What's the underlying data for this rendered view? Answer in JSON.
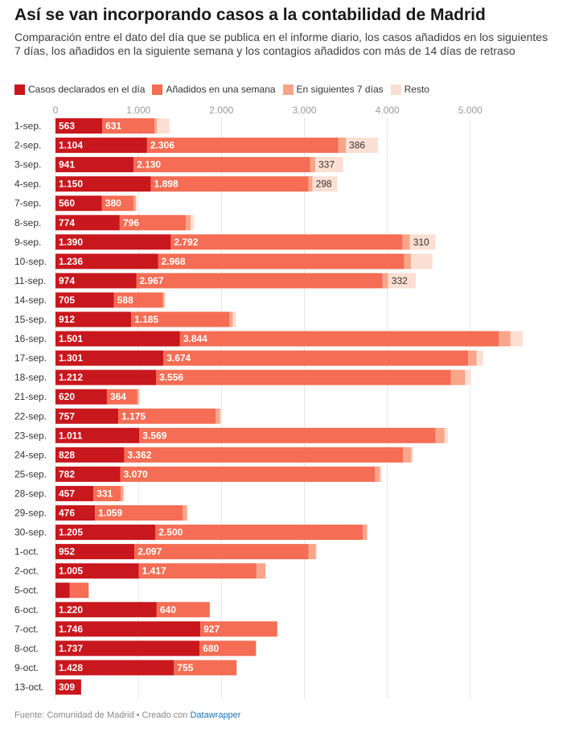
{
  "title": "Así se van incorporando casos a la contabilidad de Madrid",
  "subtitle": "Comparación entre el dato del día que se publica en el informe diario, los casos añadidos en los siguientes 7 días, los añadidos en la siguiente semana y los contagios añadidos con más de 14 días de retraso",
  "legend": [
    {
      "label": "Casos declarados en el día",
      "color": "#c9171e"
    },
    {
      "label": "Añadidos en una semana",
      "color": "#f46d54"
    },
    {
      "label": "En siguientes 7 días",
      "color": "#f9a58a"
    },
    {
      "label": "Resto",
      "color": "#fcdfd3"
    }
  ],
  "footer": {
    "text": "Fuente: Comunidad de Madrid • Creado con ",
    "link": "Datawrapper"
  },
  "chart_data": {
    "type": "bar",
    "orientation": "horizontal",
    "stacked": true,
    "xlim": [
      0,
      5700
    ],
    "x_ticks": [
      0,
      1000,
      2000,
      3000,
      4000,
      5000
    ],
    "x_tick_labels": [
      "0",
      "1.000",
      "2.000",
      "3.000",
      "4.000",
      "5.000"
    ],
    "grid": true,
    "legend_position": "top",
    "categories": [
      "1-sep.",
      "2-sep.",
      "3-sep.",
      "4-sep.",
      "7-sep.",
      "8-sep.",
      "9-sep.",
      "10-sep.",
      "11-sep.",
      "14-sep.",
      "15-sep.",
      "16-sep.",
      "17-sep.",
      "18-sep.",
      "21-sep.",
      "22-sep.",
      "23-sep.",
      "24-sep.",
      "25-sep.",
      "28-sep.",
      "29-sep.",
      "30-sep.",
      "1-oct.",
      "2-oct.",
      "5-oct.",
      "6-oct.",
      "7-oct.",
      "8-oct.",
      "9-oct.",
      "13-oct."
    ],
    "series": [
      {
        "name": "Casos declarados en el día",
        "color": "#c9171e",
        "values": [
          563,
          1104,
          941,
          1150,
          560,
          774,
          1390,
          1236,
          974,
          705,
          912,
          1501,
          1301,
          1212,
          620,
          757,
          1011,
          828,
          782,
          457,
          476,
          1205,
          952,
          1005,
          170,
          1220,
          1746,
          1737,
          1428,
          309
        ],
        "labels": [
          "563",
          "1.104",
          "941",
          "1.150",
          "560",
          "774",
          "1.390",
          "1.236",
          "974",
          "705",
          "912",
          "1.501",
          "1.301",
          "1.212",
          "620",
          "757",
          "1.011",
          "828",
          "782",
          "457",
          "476",
          "1.205",
          "952",
          "1.005",
          "",
          "1.220",
          "1.746",
          "1.737",
          "1.428",
          "309"
        ]
      },
      {
        "name": "Añadidos en una semana",
        "color": "#f46d54",
        "values": [
          631,
          2306,
          2130,
          1898,
          380,
          796,
          2792,
          2968,
          2967,
          588,
          1185,
          3844,
          3674,
          3556,
          364,
          1175,
          3569,
          3362,
          3070,
          331,
          1059,
          2500,
          2097,
          1417,
          230,
          640,
          927,
          680,
          755,
          0
        ],
        "labels": [
          "631",
          "2.306",
          "2.130",
          "1.898",
          "380",
          "796",
          "2.792",
          "2.968",
          "2.967",
          "588",
          "1.185",
          "3.844",
          "3.674",
          "3.556",
          "364",
          "1.175",
          "3.569",
          "3.362",
          "3.070",
          "331",
          "1.059",
          "2.500",
          "2.097",
          "1.417",
          "",
          "640",
          "927",
          "680",
          "755",
          ""
        ]
      },
      {
        "name": "En siguientes 7 días",
        "color": "#f9a58a",
        "values": [
          30,
          90,
          60,
          50,
          30,
          60,
          90,
          80,
          70,
          20,
          40,
          140,
          100,
          170,
          20,
          50,
          110,
          100,
          60,
          30,
          50,
          50,
          90,
          110,
          0,
          0,
          0,
          0,
          0,
          0
        ],
        "labels": [
          "",
          "",
          "",
          "",
          "",
          "",
          "",
          "",
          "",
          "",
          "",
          "",
          "",
          "",
          "",
          "",
          "",
          "",
          "",
          "",
          "",
          "",
          "",
          "",
          "",
          "",
          "",
          "",
          "",
          ""
        ]
      },
      {
        "name": "Resto",
        "color": "#fcdfd3",
        "values": [
          150,
          386,
          337,
          298,
          10,
          40,
          310,
          260,
          332,
          10,
          40,
          150,
          80,
          70,
          10,
          20,
          40,
          20,
          20,
          10,
          10,
          10,
          10,
          0,
          0,
          0,
          0,
          0,
          0,
          0
        ],
        "labels": [
          "",
          "386",
          "337",
          "298",
          "",
          "",
          "310",
          "",
          "332",
          "",
          "",
          "",
          "",
          "",
          "",
          "",
          "",
          "",
          "",
          "",
          "",
          "",
          "",
          "",
          "",
          "",
          "",
          "",
          "",
          ""
        ]
      }
    ]
  }
}
